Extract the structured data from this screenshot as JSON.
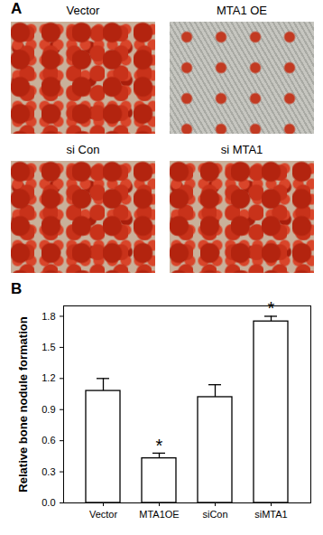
{
  "panel_a": {
    "label": "A",
    "images": [
      "Vector",
      "MTA1 OE",
      "si Con",
      "si MTA1"
    ]
  },
  "panel_b": {
    "label": "B"
  },
  "chart_data": {
    "type": "bar",
    "ylabel": "Relative bone nodule formation",
    "categories": [
      "Vector",
      "MTA1OE",
      "siCon",
      "siMTA1"
    ],
    "values": [
      1.08,
      0.43,
      1.02,
      1.75
    ],
    "errors": [
      0.12,
      0.05,
      0.12,
      0.05
    ],
    "color": "#ffffff",
    "ylim": [
      0,
      1.9
    ],
    "yticks": [
      {
        "value": 0,
        "label": "0.0"
      },
      0.3,
      0.6,
      0.9,
      1.2,
      1.5,
      1.8
    ],
    "annotations": [
      {
        "category": "MTA1OE",
        "text": "*"
      },
      {
        "category": "siMTA1",
        "text": "*"
      }
    ]
  }
}
